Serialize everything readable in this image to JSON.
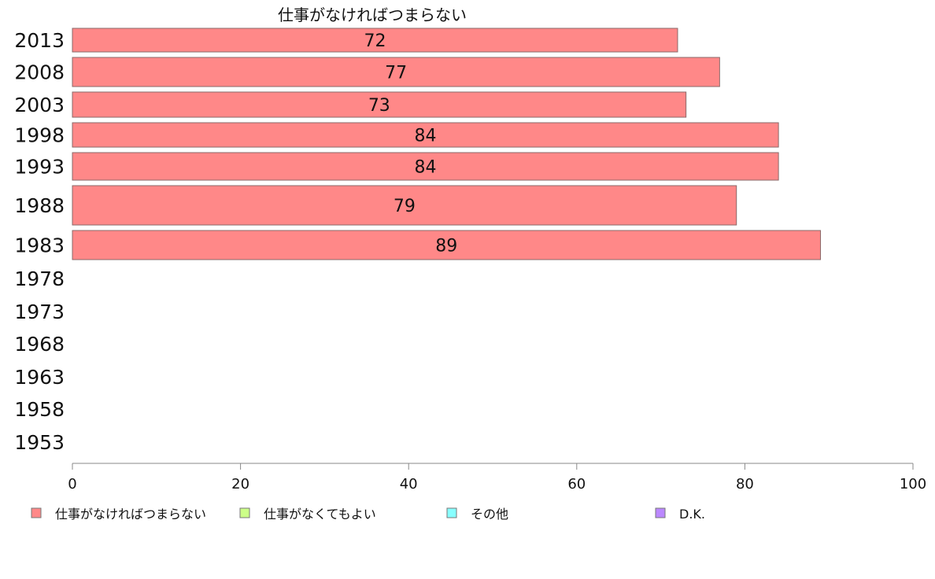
{
  "chart_data": {
    "type": "bar",
    "orientation": "horizontal",
    "categories": [
      "2013",
      "2008",
      "2003",
      "1998",
      "1993",
      "1988",
      "1983",
      "1978",
      "1973",
      "1968",
      "1963",
      "1958",
      "1953"
    ],
    "series": [
      {
        "name": "仕事がなければつまらない",
        "color": "#ff8888",
        "values": [
          72,
          77,
          73,
          84,
          84,
          79,
          89,
          null,
          null,
          null,
          null,
          null,
          null
        ]
      },
      {
        "name": "仕事がなくてもよい",
        "color": "#ccff88",
        "values": [
          null,
          null,
          null,
          null,
          null,
          null,
          null,
          null,
          null,
          null,
          null,
          null,
          null
        ]
      },
      {
        "name": "その他",
        "color": "#88ffff",
        "values": [
          null,
          null,
          null,
          null,
          null,
          null,
          null,
          null,
          null,
          null,
          null,
          null,
          null
        ]
      },
      {
        "name": "D.K.",
        "color": "#bb88ff",
        "values": [
          null,
          null,
          null,
          null,
          null,
          null,
          null,
          null,
          null,
          null,
          null,
          null,
          null
        ]
      }
    ],
    "data_labels": [
      "72",
      "77",
      "73",
      "84",
      "84",
      "79",
      "89"
    ],
    "series_title": "仕事がなければつまらない",
    "xlim": [
      0,
      100
    ],
    "xticks": [
      0,
      20,
      40,
      60,
      80,
      100
    ],
    "grid": false,
    "legend_position": "bottom"
  }
}
